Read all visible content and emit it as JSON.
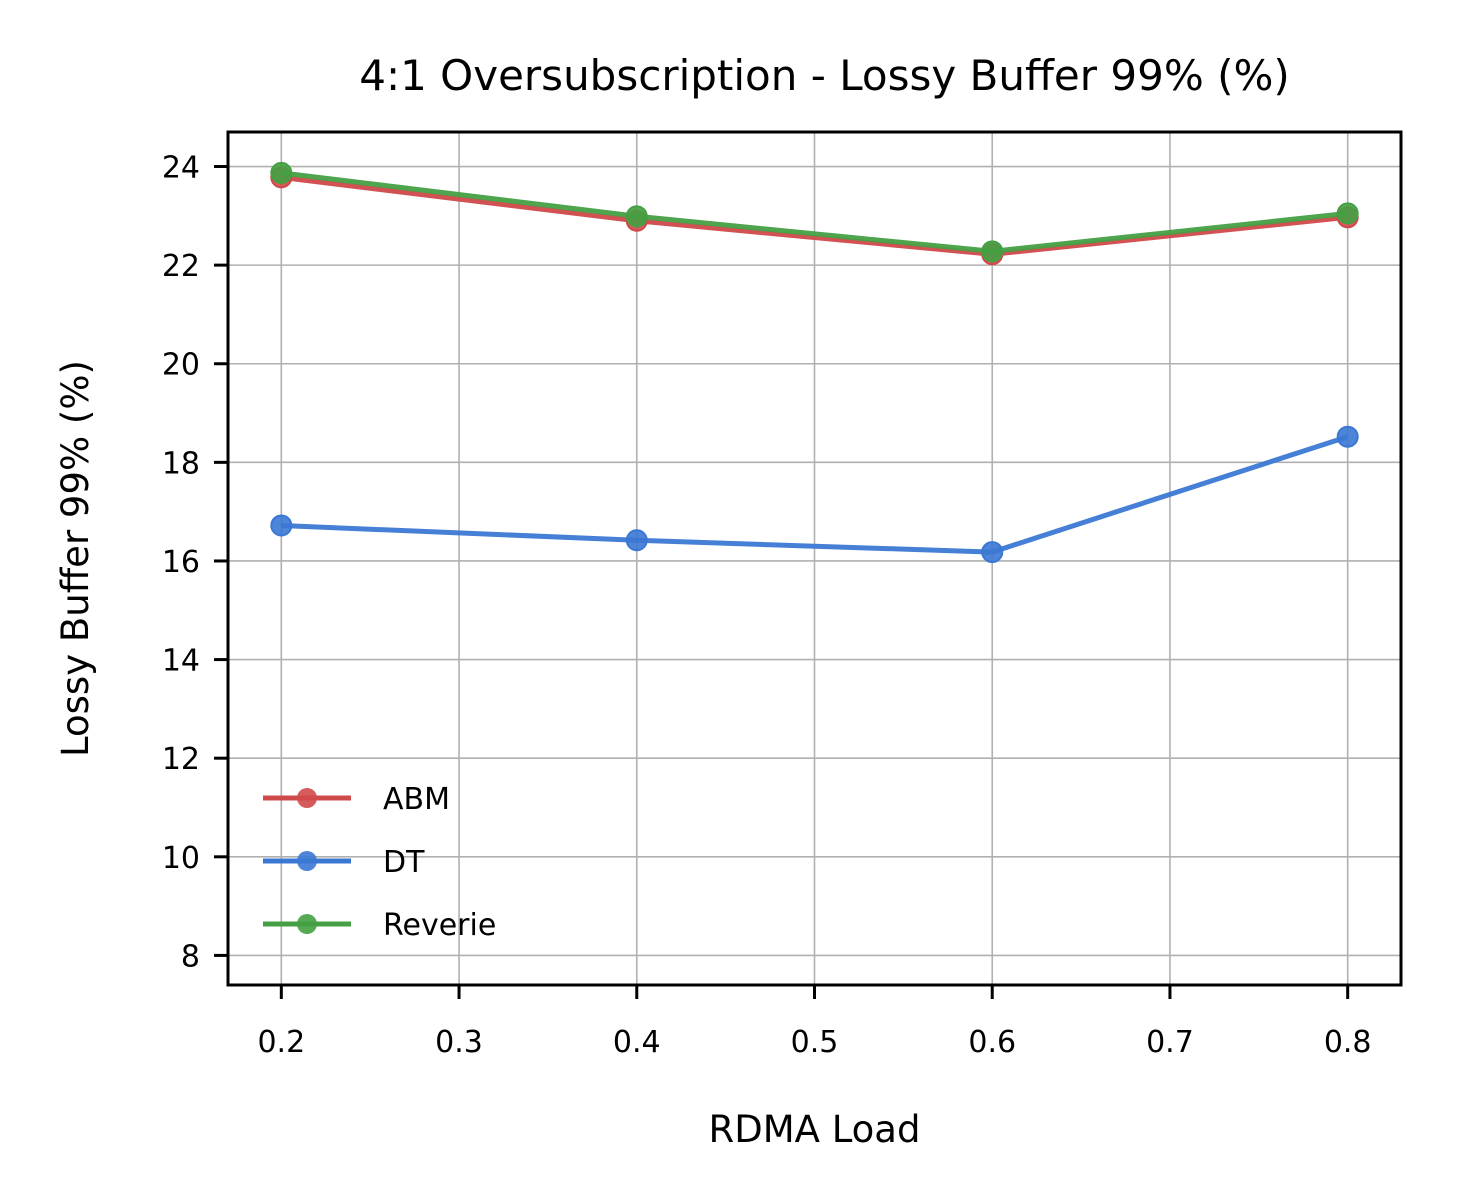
{
  "chart_data": {
    "type": "line",
    "title": "4:1 Oversubscription - Lossy Buffer 99% (%)",
    "xlabel": "RDMA Load",
    "ylabel": "Lossy Buffer 99% (%)",
    "xlim": [
      0.17,
      0.83
    ],
    "ylim": [
      7.4,
      24.7
    ],
    "xticks": [
      "0.2",
      "0.3",
      "0.4",
      "0.5",
      "0.6",
      "0.7",
      "0.8"
    ],
    "yticks": [
      "8",
      "10",
      "12",
      "14",
      "16",
      "18",
      "20",
      "22",
      "24"
    ],
    "grid": true,
    "legend_position": "lower-left",
    "x": [
      0.2,
      0.4,
      0.6,
      0.8
    ],
    "series": [
      {
        "name": "ABM",
        "color": "#d0494a",
        "values": [
          23.78,
          22.9,
          22.22,
          22.97
        ]
      },
      {
        "name": "DT",
        "color": "#3b78d4",
        "values": [
          16.72,
          16.42,
          16.18,
          18.52
        ]
      },
      {
        "name": "Reverie",
        "color": "#44a043",
        "values": [
          23.87,
          22.99,
          22.28,
          23.05
        ]
      }
    ]
  }
}
